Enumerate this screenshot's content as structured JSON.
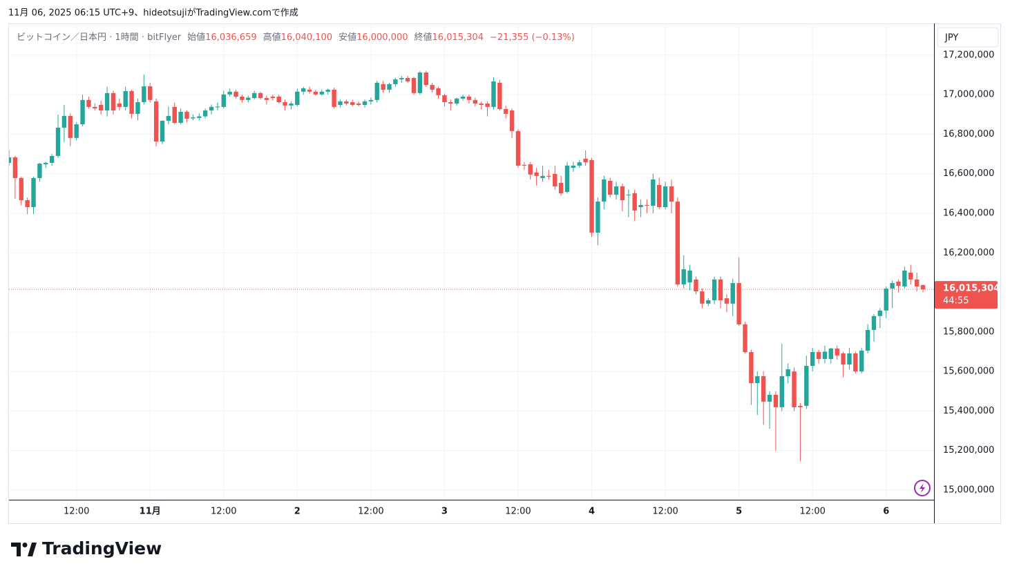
{
  "header": {
    "credit": "11月 06, 2025 06:15 UTC+9、hideotsujiがTradingView.comで作成"
  },
  "logo": "TradingView",
  "chart_data": {
    "type": "candlestick",
    "legend": {
      "symbol": "ビットコイン／日本円 · 1時間 · bitFlyer",
      "open_label": "始値",
      "open": "16,036,659",
      "high_label": "高値",
      "high": "16,040,100",
      "low_label": "安値",
      "low": "16,000,000",
      "close_label": "終値",
      "close": "16,015,304",
      "change": "−21,355 (−0.13%)"
    },
    "currency": "JPY",
    "last_price_label": "16,015,304",
    "countdown": "44:55",
    "colors": {
      "up": "#26a69a",
      "down": "#ef5350"
    },
    "ylim": [
      14951000,
      17360000
    ],
    "yticks": [
      {
        "value": 15000000,
        "label": "15,000,000"
      },
      {
        "value": 15200000,
        "label": "15,200,000"
      },
      {
        "value": 15400000,
        "label": "15,400,000"
      },
      {
        "value": 15600000,
        "label": "15,600,000"
      },
      {
        "value": 15800000,
        "label": "15,800,000"
      },
      {
        "value": 16200000,
        "label": "16,200,000"
      },
      {
        "value": 16400000,
        "label": "16,400,000"
      },
      {
        "value": 16600000,
        "label": "16,600,000"
      },
      {
        "value": 16800000,
        "label": "16,800,000"
      },
      {
        "value": 17000000,
        "label": "17,000,000"
      },
      {
        "value": 17200000,
        "label": "17,200,000"
      }
    ],
    "xlim": [
      0,
      150.8
    ],
    "xticks": [
      {
        "value": 11,
        "label": "12:00"
      },
      {
        "value": 23,
        "label": "11月"
      },
      {
        "value": 35,
        "label": "12:00"
      },
      {
        "value": 47,
        "label": "2"
      },
      {
        "value": 59,
        "label": "12:00"
      },
      {
        "value": 71,
        "label": "3"
      },
      {
        "value": 83,
        "label": "12:00"
      },
      {
        "value": 95,
        "label": "4"
      },
      {
        "value": 107,
        "label": "12:00"
      },
      {
        "value": 119,
        "label": "5"
      },
      {
        "value": 131,
        "label": "12:00"
      },
      {
        "value": 143,
        "label": "6"
      }
    ],
    "grid": true,
    "candles": [
      [
        16655000,
        16720000,
        16640000,
        16683000
      ],
      [
        16683000,
        16690000,
        16473000,
        16578000
      ],
      [
        16578000,
        16585000,
        16440000,
        16466000
      ],
      [
        16466000,
        16480000,
        16396000,
        16431000
      ],
      [
        16431000,
        16585000,
        16396000,
        16578000
      ],
      [
        16578000,
        16655000,
        16560000,
        16651000
      ],
      [
        16648000,
        16660000,
        16630000,
        16655000
      ],
      [
        16655000,
        16700000,
        16640000,
        16690000
      ],
      [
        16690000,
        16900000,
        16680000,
        16833000
      ],
      [
        16833000,
        16948000,
        16760000,
        16892000
      ],
      [
        16892000,
        16905000,
        16740000,
        16781000
      ],
      [
        16781000,
        16860000,
        16770000,
        16850000
      ],
      [
        16850000,
        17000000,
        16840000,
        16973000
      ],
      [
        16973000,
        16990000,
        16930000,
        16938000
      ],
      [
        16938000,
        16955000,
        16920000,
        16930000
      ],
      [
        16948000,
        16970000,
        16900000,
        16920000
      ],
      [
        16920000,
        17040000,
        16890000,
        17008000
      ],
      [
        17008000,
        17020000,
        16900000,
        16920000
      ],
      [
        16955000,
        16980000,
        16920000,
        16938000
      ],
      [
        16938000,
        17040000,
        16920000,
        17018000
      ],
      [
        17018000,
        17025000,
        16880000,
        16903000
      ],
      [
        16903000,
        16980000,
        16870000,
        16962000
      ],
      [
        16962000,
        17102000,
        16950000,
        17042000
      ],
      [
        17042000,
        17060000,
        16960000,
        16973000
      ],
      [
        16966000,
        16980000,
        16739000,
        16763000
      ],
      [
        16763000,
        16870000,
        16750000,
        16868000
      ],
      [
        16868000,
        16940000,
        16850000,
        16892000
      ],
      [
        16938000,
        16960000,
        16850000,
        16857000
      ],
      [
        16857000,
        16930000,
        16850000,
        16913000
      ],
      [
        16913000,
        16920000,
        16860000,
        16878000
      ],
      [
        16880000,
        16900000,
        16870000,
        16885000
      ],
      [
        16882000,
        16905000,
        16870000,
        16890000
      ],
      [
        16890000,
        16930000,
        16880000,
        16920000
      ],
      [
        16920000,
        16950000,
        16900000,
        16938000
      ],
      [
        16936000,
        16960000,
        16920000,
        16940000
      ],
      [
        16938000,
        17020000,
        16930000,
        17001000
      ],
      [
        17001000,
        17030000,
        16990000,
        17015000
      ],
      [
        17015000,
        17025000,
        16980000,
        16990000
      ],
      [
        16990000,
        17000000,
        16960000,
        16973000
      ],
      [
        16973000,
        16995000,
        16960000,
        16985000
      ],
      [
        16983000,
        17020000,
        16975000,
        17008000
      ],
      [
        17008000,
        17015000,
        16975000,
        16983000
      ],
      [
        16983000,
        16995000,
        16950000,
        16973000
      ],
      [
        16990000,
        17000000,
        16970000,
        16983000
      ],
      [
        16990000,
        17000000,
        16955000,
        16962000
      ],
      [
        16962000,
        16975000,
        16920000,
        16945000
      ],
      [
        16945000,
        16965000,
        16925000,
        16955000
      ],
      [
        16948000,
        17030000,
        16940000,
        17015000
      ],
      [
        17015000,
        17040000,
        17000000,
        17032000
      ],
      [
        17025000,
        17040000,
        17005000,
        17015000
      ],
      [
        17015000,
        17025000,
        16995000,
        17001000
      ],
      [
        17001000,
        17025000,
        16995000,
        17015000
      ],
      [
        17015000,
        17030000,
        17000000,
        17025000
      ],
      [
        17025000,
        17035000,
        16930000,
        16938000
      ],
      [
        16948000,
        16975000,
        16935000,
        16966000
      ],
      [
        16966000,
        16975000,
        16945000,
        16955000
      ],
      [
        16962000,
        16975000,
        16940000,
        16948000
      ],
      [
        16955000,
        16965000,
        16940000,
        16948000
      ],
      [
        16948000,
        16975000,
        16935000,
        16966000
      ],
      [
        16966000,
        16985000,
        16950000,
        16973000
      ],
      [
        16973000,
        17070000,
        16960000,
        17060000
      ],
      [
        17053000,
        17070000,
        17010000,
        17025000
      ],
      [
        17025000,
        17060000,
        17010000,
        17053000
      ],
      [
        17053000,
        17085000,
        17040000,
        17077000
      ],
      [
        17077000,
        17095000,
        17060000,
        17084000
      ],
      [
        17084000,
        17095000,
        17060000,
        17067000
      ],
      [
        17084000,
        17090000,
        17000000,
        17008000
      ],
      [
        17008000,
        17120000,
        17000000,
        17112000
      ],
      [
        17112000,
        17120000,
        17040000,
        17049000
      ],
      [
        17049000,
        17060000,
        17010000,
        17025000
      ],
      [
        17032000,
        17040000,
        16980000,
        16997000
      ],
      [
        16997000,
        17005000,
        16940000,
        16962000
      ],
      [
        16962000,
        16975000,
        16920000,
        16955000
      ],
      [
        16955000,
        16985000,
        16945000,
        16980000
      ],
      [
        16980000,
        17000000,
        16970000,
        16990000
      ],
      [
        16990000,
        17000000,
        16955000,
        16973000
      ],
      [
        16973000,
        16985000,
        16940000,
        16955000
      ],
      [
        16955000,
        16965000,
        16925000,
        16948000
      ],
      [
        16955000,
        16965000,
        16890000,
        16938000
      ],
      [
        16938000,
        17088000,
        16925000,
        17067000
      ],
      [
        17060000,
        17075000,
        16920000,
        16927000
      ],
      [
        16927000,
        16945000,
        16880000,
        16903000
      ],
      [
        16920000,
        16930000,
        16780000,
        16816000
      ],
      [
        16816000,
        16825000,
        16630000,
        16641000
      ],
      [
        16645000,
        16660000,
        16620000,
        16641000
      ],
      [
        16648000,
        16660000,
        16570000,
        16596000
      ],
      [
        16606000,
        16630000,
        16540000,
        16589000
      ],
      [
        16578000,
        16640000,
        16560000,
        16589000
      ],
      [
        16589000,
        16620000,
        16570000,
        16585000
      ],
      [
        16599000,
        16640000,
        16520000,
        16536000
      ],
      [
        16554000,
        16590000,
        16490000,
        16501000
      ],
      [
        16508000,
        16660000,
        16500000,
        16641000
      ],
      [
        16630000,
        16660000,
        16610000,
        16641000
      ],
      [
        16641000,
        16670000,
        16630000,
        16658000
      ],
      [
        16676000,
        16718000,
        16640000,
        16658000
      ],
      [
        16669000,
        16680000,
        16280000,
        16302000
      ],
      [
        16302000,
        16480000,
        16239000,
        16459000
      ],
      [
        16459000,
        16590000,
        16420000,
        16571000
      ],
      [
        16564000,
        16580000,
        16480000,
        16494000
      ],
      [
        16494000,
        16560000,
        16470000,
        16536000
      ],
      [
        16536000,
        16550000,
        16410000,
        16466000
      ],
      [
        16491000,
        16520000,
        16380000,
        16494000
      ],
      [
        16501000,
        16520000,
        16360000,
        16414000
      ],
      [
        16431000,
        16470000,
        16380000,
        16442000
      ],
      [
        16442000,
        16470000,
        16400000,
        16438000
      ],
      [
        16438000,
        16600000,
        16400000,
        16571000
      ],
      [
        16543000,
        16580000,
        16420000,
        16431000
      ],
      [
        16431000,
        16560000,
        16420000,
        16536000
      ],
      [
        16536000,
        16570000,
        16400000,
        16459000
      ],
      [
        16459000,
        16480000,
        16030000,
        16040000
      ],
      [
        16040000,
        16187000,
        16020000,
        16117000
      ],
      [
        16050000,
        16140000,
        16010000,
        16110000
      ],
      [
        16065000,
        16080000,
        15990000,
        16005000
      ],
      [
        16005000,
        16020000,
        15920000,
        15943000
      ],
      [
        15943000,
        15970000,
        15930000,
        15960000
      ],
      [
        15960000,
        16080000,
        15940000,
        16065000
      ],
      [
        16065000,
        16080000,
        15920000,
        15960000
      ],
      [
        15970000,
        15990000,
        15900000,
        15943000
      ],
      [
        15943000,
        16070000,
        15880000,
        16047000
      ],
      [
        16047000,
        16177000,
        15830000,
        15838000
      ],
      [
        15838000,
        15850000,
        15690000,
        15698000
      ],
      [
        15698000,
        15710000,
        15430000,
        15541000
      ],
      [
        15541000,
        15600000,
        15380000,
        15576000
      ],
      [
        15576000,
        15600000,
        15330000,
        15447000
      ],
      [
        15447000,
        15500000,
        15310000,
        15482000
      ],
      [
        15482000,
        15500000,
        15199000,
        15419000
      ],
      [
        15419000,
        15740000,
        15400000,
        15576000
      ],
      [
        15576000,
        15640000,
        15540000,
        15611000
      ],
      [
        15600000,
        15620000,
        15400000,
        15419000
      ],
      [
        15426000,
        15440000,
        15146000,
        15419000
      ],
      [
        15426000,
        15680000,
        15410000,
        15628000
      ],
      [
        15628000,
        15720000,
        15600000,
        15698000
      ],
      [
        15698000,
        15710000,
        15640000,
        15663000
      ],
      [
        15663000,
        15730000,
        15640000,
        15700000
      ],
      [
        15663000,
        15720000,
        15640000,
        15716000
      ],
      [
        15716000,
        15730000,
        15660000,
        15681000
      ],
      [
        15691000,
        15700000,
        15570000,
        15635000
      ],
      [
        15635000,
        15720000,
        15610000,
        15691000
      ],
      [
        15691000,
        15700000,
        15590000,
        15600000
      ],
      [
        15600000,
        15720000,
        15590000,
        15705000
      ],
      [
        15705000,
        15840000,
        15690000,
        15810000
      ],
      [
        15810000,
        15890000,
        15750000,
        15880000
      ],
      [
        15880000,
        15920000,
        15820000,
        15908000
      ],
      [
        15908000,
        16030000,
        15870000,
        16019000
      ],
      [
        16019000,
        16060000,
        15920000,
        16047000
      ],
      [
        16054000,
        16065000,
        16000000,
        16033000
      ],
      [
        16030000,
        16130000,
        16020000,
        16110000
      ],
      [
        16100000,
        16140000,
        16040000,
        16065000
      ],
      [
        16065000,
        16100000,
        16005000,
        16030000
      ],
      [
        16036659,
        16040100,
        16000000,
        16015304
      ]
    ]
  }
}
